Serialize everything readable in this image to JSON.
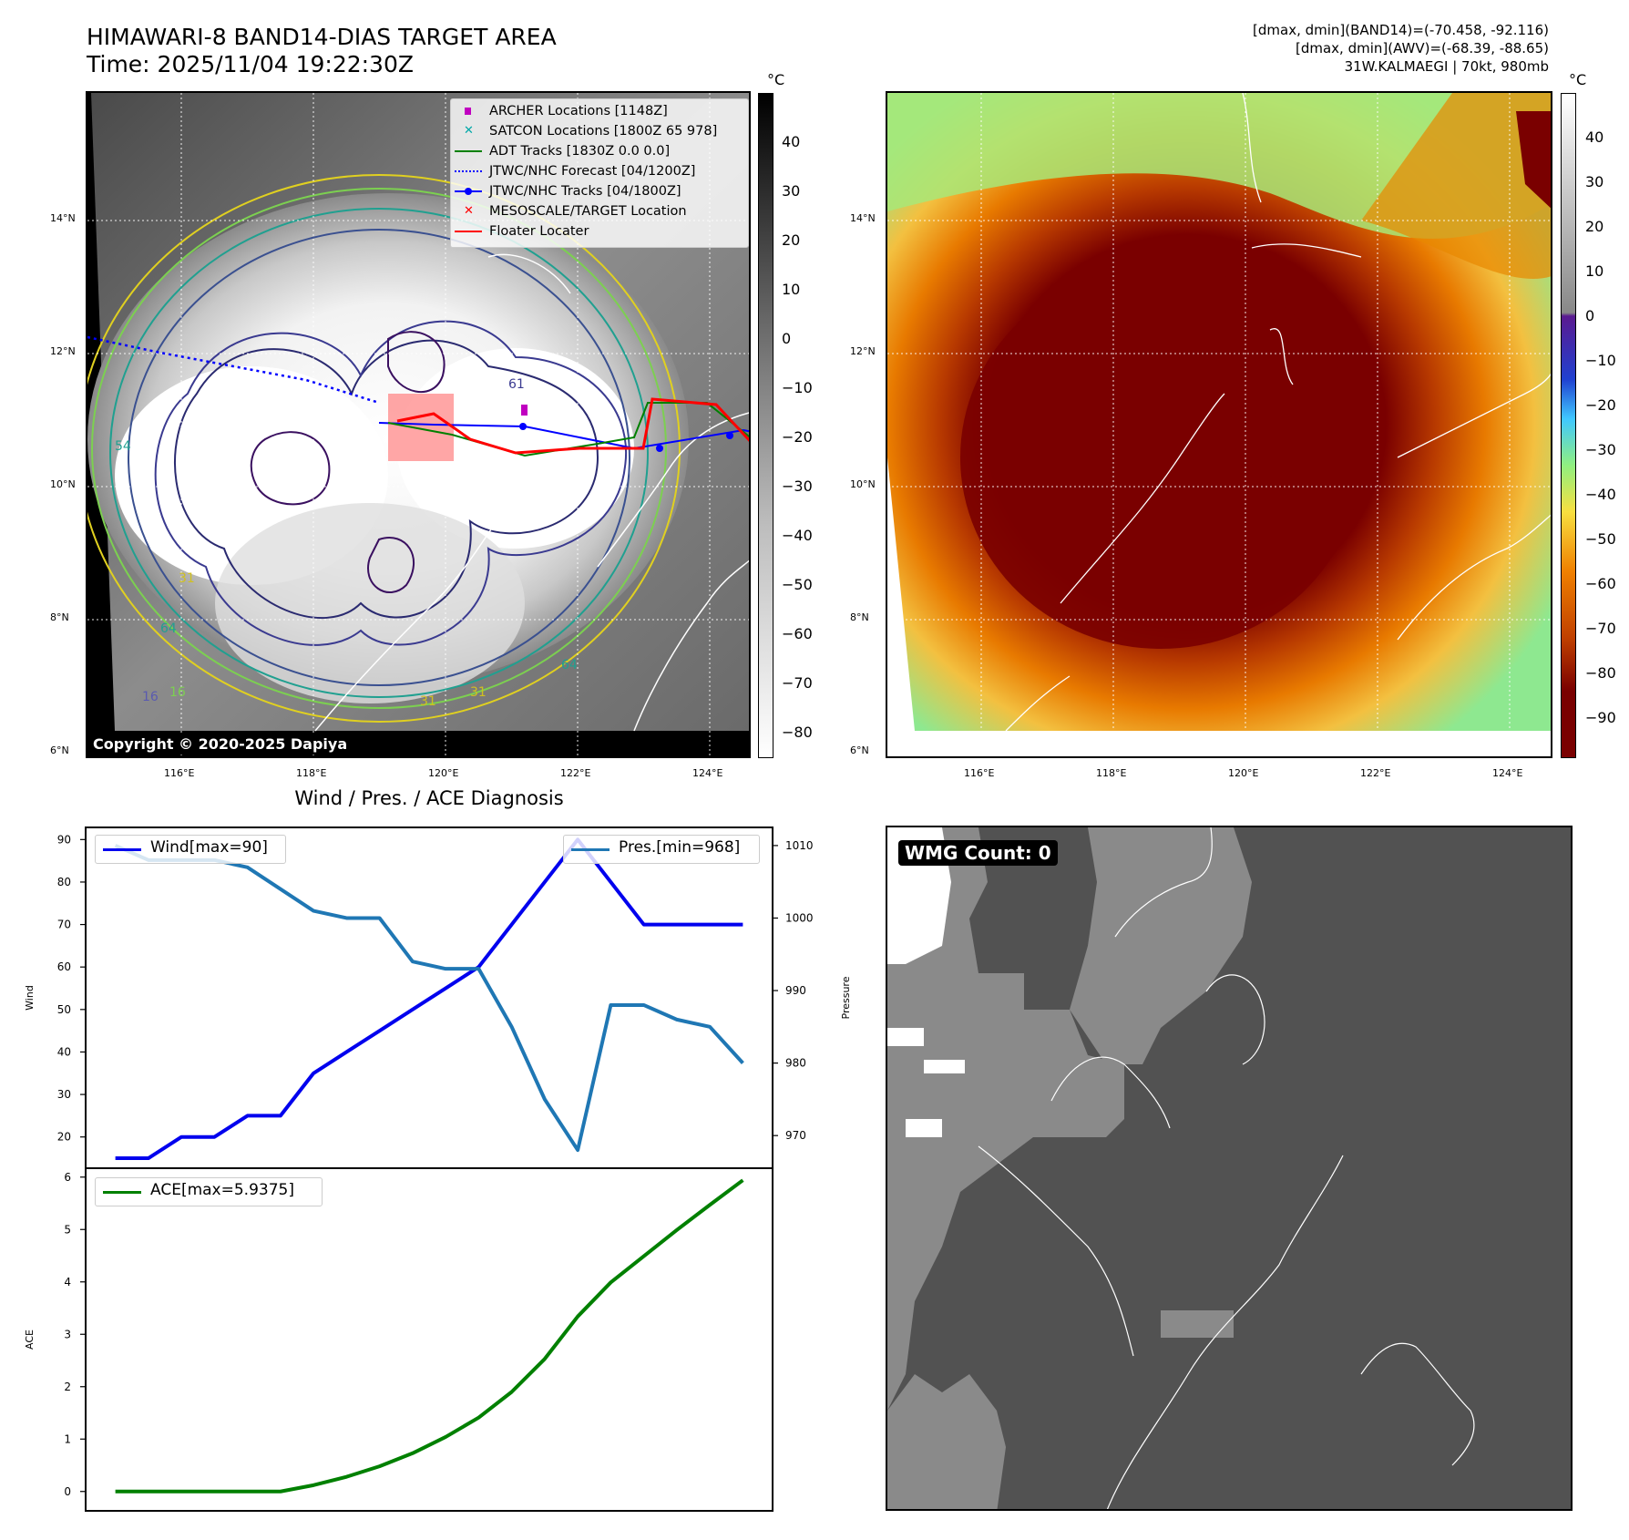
{
  "header": {
    "title_line1": "HIMAWARI-8 BAND14-DIAS TARGET AREA",
    "title_line2": "Time: 2025/11/04 19:22:30Z",
    "info_line1": "[dmax, dmin](BAND14)=(-70.458, -92.116)",
    "info_line2": "[dmax, dmin](AWV)=(-68.39, -88.65)",
    "info_line3": "31W.KALMAEGI | 70kt, 980mb"
  },
  "map": {
    "lat_labels": [
      "14°N",
      "12°N",
      "10°N",
      "8°N",
      "6°N"
    ],
    "lon_labels": [
      "116°E",
      "118°E",
      "120°E",
      "122°E",
      "124°E"
    ],
    "copyright": "Copyright © 2020-2025 Dapiya",
    "contour_labels": [
      "16",
      "31",
      "31",
      "31",
      "64",
      "64",
      "54",
      "16",
      "61"
    ],
    "legend": [
      {
        "label": "ARCHER Locations [1148Z]",
        "color": "#c000c0",
        "kind": "square"
      },
      {
        "label": "SATCON Locations [1800Z 65 978]",
        "color": "#00a8a8",
        "kind": "x"
      },
      {
        "label": "ADT Tracks [1830Z 0.0 0.0]",
        "color": "#008000",
        "kind": "line"
      },
      {
        "label": "JTWC/NHC Forecast [04/1200Z]",
        "color": "#0000ff",
        "kind": "dotted"
      },
      {
        "label": "JTWC/NHC Tracks [04/1800Z]",
        "color": "#0000ff",
        "kind": "linedot"
      },
      {
        "label": "MESOSCALE/TARGET Location",
        "color": "#ff0000",
        "kind": "x"
      },
      {
        "label": "Floater Locater",
        "color": "#ff0000",
        "kind": "line"
      }
    ]
  },
  "colorbar_gray": {
    "unit": "°C",
    "ticks": [
      "40",
      "30",
      "20",
      "10",
      "0",
      "−10",
      "−20",
      "−30",
      "−40",
      "−50",
      "−60",
      "−70",
      "−80"
    ]
  },
  "colorbar_color": {
    "unit": "°C",
    "ticks": [
      "40",
      "30",
      "20",
      "10",
      "0",
      "−10",
      "−20",
      "−30",
      "−40",
      "−50",
      "−60",
      "−70",
      "−80",
      "−90"
    ]
  },
  "wmg": {
    "label": "WMG Count: 0"
  },
  "chart_data": [
    {
      "type": "line",
      "title": "Wind / Pres. / ACE Diagnosis",
      "ylabel": "Wind",
      "ylabel_right": "Pressure",
      "ylim": [
        13.5,
        92
      ],
      "ylim_right": [
        966,
        1012
      ],
      "yticks": [
        20,
        30,
        40,
        50,
        60,
        70,
        80,
        90
      ],
      "yticks_right": [
        970,
        980,
        990,
        1000,
        1010
      ],
      "x": [
        0,
        1,
        2,
        3,
        4,
        5,
        6,
        7,
        8,
        9,
        10,
        11,
        12,
        13,
        14,
        15,
        16,
        17,
        18,
        19
      ],
      "series": [
        {
          "name": "Wind[max=90]",
          "color": "#0000ee",
          "axis": "left",
          "values": [
            15,
            15,
            20,
            20,
            25,
            25,
            35,
            40,
            45,
            50,
            55,
            60,
            70,
            80,
            90,
            80,
            70,
            70,
            70,
            70
          ]
        },
        {
          "name": "Pres.[min=968]",
          "color": "#1f77b4",
          "axis": "right",
          "values": [
            1010,
            1008,
            1008,
            1008,
            1007,
            1004,
            1001,
            1000,
            1000,
            994,
            993,
            993,
            985,
            975,
            968,
            988,
            988,
            986,
            985,
            980
          ]
        }
      ]
    },
    {
      "type": "line",
      "ylabel": "ACE",
      "ylim": [
        -0.3,
        6.1
      ],
      "yticks": [
        0,
        1,
        2,
        3,
        4,
        5,
        6
      ],
      "x": [
        0,
        1,
        2,
        3,
        4,
        5,
        6,
        7,
        8,
        9,
        10,
        11,
        12,
        13,
        14,
        15,
        16,
        17,
        18,
        19
      ],
      "series": [
        {
          "name": "ACE[max=5.9375]",
          "color": "#008000",
          "axis": "left",
          "values": [
            0,
            0,
            0,
            0,
            0,
            0,
            0.12,
            0.28,
            0.48,
            0.73,
            1.04,
            1.41,
            1.9,
            2.53,
            3.34,
            3.99,
            4.49,
            4.99,
            5.47,
            5.94
          ]
        }
      ]
    }
  ]
}
